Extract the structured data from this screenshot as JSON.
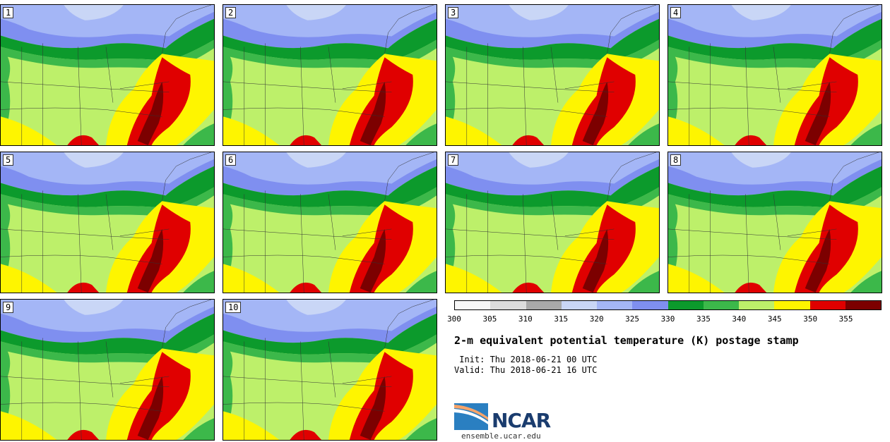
{
  "panels": [
    {
      "label": "1"
    },
    {
      "label": "2"
    },
    {
      "label": "3"
    },
    {
      "label": "4"
    },
    {
      "label": "5"
    },
    {
      "label": "6"
    },
    {
      "label": "7"
    },
    {
      "label": "8"
    },
    {
      "label": "9"
    },
    {
      "label": "10"
    }
  ],
  "colorbar": {
    "ticks": [
      "300",
      "305",
      "310",
      "315",
      "320",
      "325",
      "330",
      "335",
      "340",
      "345",
      "350",
      "355"
    ],
    "colors": [
      "#f7f7f7",
      "#dcdcdc",
      "#a9a9a9",
      "#c9d6f6",
      "#a4b6f6",
      "#7f8ff0",
      "#0c9a2c",
      "#3cb84a",
      "#bdf06a",
      "#fef500",
      "#e00000",
      "#7c0000"
    ]
  },
  "title": "2-m equivalent potential temperature (K) postage stamp",
  "init": " Init: Thu 2018-06-21 00 UTC",
  "valid": "Valid: Thu 2018-06-21 16 UTC",
  "logo": {
    "name": "NCAR",
    "url": "ensemble.ucar.edu"
  }
}
